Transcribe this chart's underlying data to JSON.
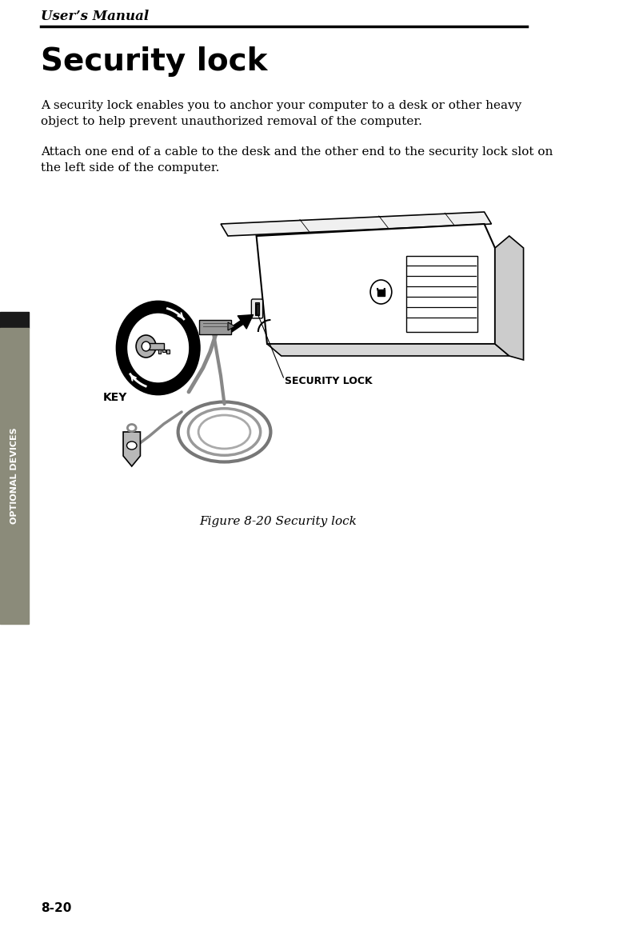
{
  "page_title": "User’s Manual",
  "section_title": "Security lock",
  "body_text_1": "A security lock enables you to anchor your computer to a desk or other heavy\nobject to help prevent unauthorized removal of the computer.",
  "body_text_2": "Attach one end of a cable to the desk and the other end to the security lock slot on\nthe left side of the computer.",
  "figure_caption": "Figure 8-20 Security lock",
  "page_number": "8-20",
  "sidebar_text": "OPTIONAL DEVICES",
  "label_security_lock": "SECURITY LOCK",
  "label_key": "KEY",
  "bg_color": "#ffffff",
  "sidebar_bg": "#8B8B7A",
  "sidebar_text_color": "#ffffff",
  "sidebar_dark_top": "#1a1a1a",
  "title_color": "#000000",
  "body_color": "#000000"
}
